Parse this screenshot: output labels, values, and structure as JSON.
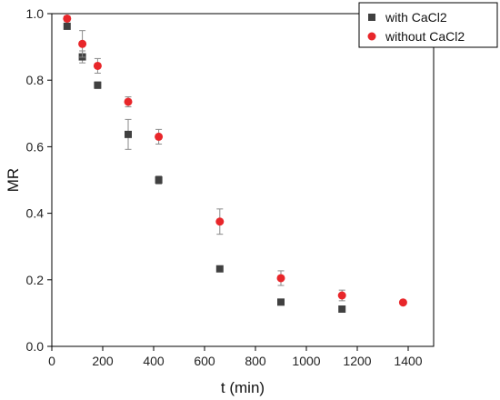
{
  "chart_data": {
    "type": "scatter",
    "xlabel": "t (min)",
    "ylabel": "MR",
    "xlim": [
      0,
      1500
    ],
    "ylim": [
      0,
      1.0
    ],
    "xticks": [
      0,
      200,
      400,
      600,
      800,
      1000,
      1200,
      1400
    ],
    "yticks": [
      0.0,
      0.2,
      0.4,
      0.6,
      0.8,
      1.0
    ],
    "xtick_labels": [
      "0",
      "200",
      "400",
      "600",
      "800",
      "1000",
      "1200",
      "1400"
    ],
    "ytick_labels": [
      "0.0",
      "0.2",
      "0.4",
      "0.6",
      "0.8",
      "1.0"
    ],
    "grid": false,
    "legend_position": "top-right",
    "series": [
      {
        "name": "with CaCl2",
        "marker": "square",
        "color": "#404040",
        "x": [
          60,
          120,
          180,
          300,
          420,
          660,
          900,
          1140
        ],
        "y": [
          0.962,
          0.87,
          0.785,
          0.637,
          0.5,
          0.233,
          0.133,
          0.112
        ],
        "err": [
          0.008,
          0.018,
          0.01,
          0.045,
          0.012,
          0.007,
          0.005,
          0.006
        ]
      },
      {
        "name": "without CaCl2",
        "marker": "circle",
        "color": "#e8262a",
        "x": [
          60,
          120,
          180,
          300,
          420,
          660,
          900,
          1140,
          1380
        ],
        "y": [
          0.985,
          0.909,
          0.843,
          0.735,
          0.63,
          0.375,
          0.205,
          0.153,
          0.132
        ],
        "err": [
          0.008,
          0.04,
          0.022,
          0.015,
          0.022,
          0.038,
          0.022,
          0.016,
          0.004
        ]
      }
    ]
  }
}
